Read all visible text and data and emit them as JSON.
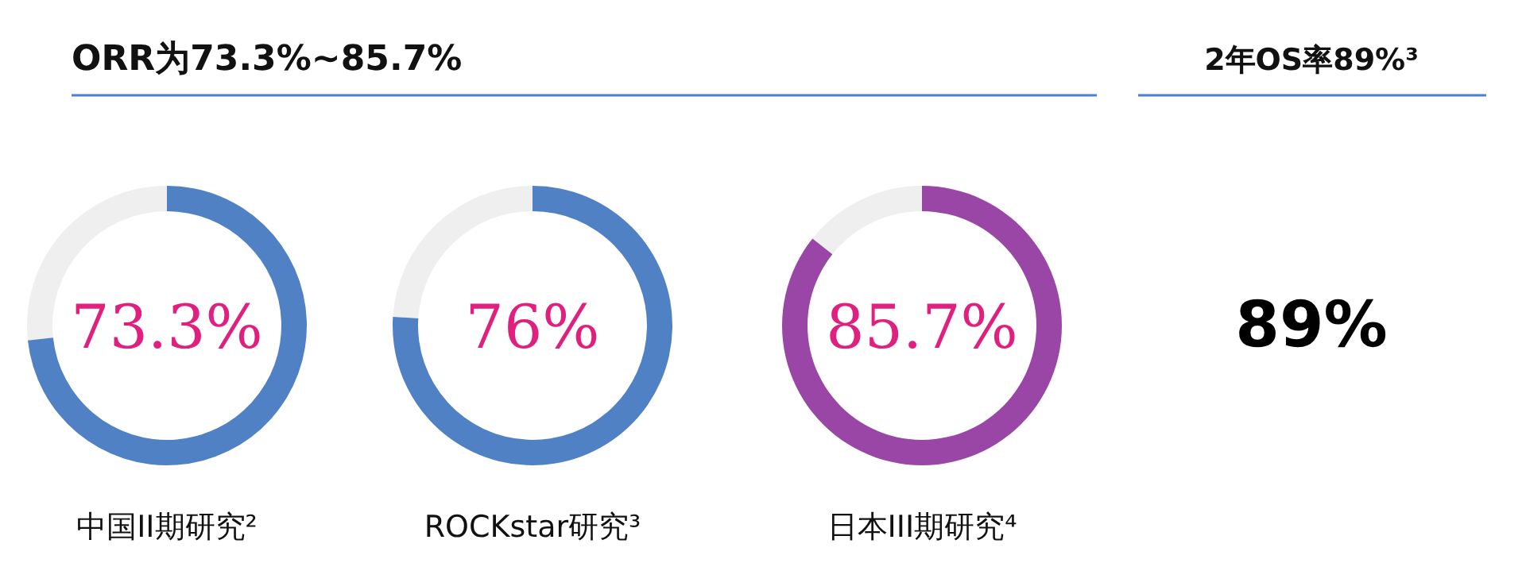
{
  "chart_data": [
    {
      "type": "donut",
      "title": "ORR为73.3%~85.7%",
      "xlabel": "中国II期研究²",
      "categories": [
        null,
        null
      ],
      "values": [
        73.3,
        26.7
      ],
      "colors": [
        "#4f81c4",
        "#efefef"
      ],
      "value_labels": [
        "73.3%",
        null
      ]
    },
    {
      "type": "donut",
      "xlabel": "ROCKstar研究³",
      "categories": [
        null,
        null
      ],
      "values": [
        76,
        24
      ],
      "colors": [
        "#4f81c4",
        "#efefef"
      ],
      "value_labels": [
        "76%",
        null
      ]
    },
    {
      "type": "donut",
      "xlabel": "日本III期研究⁴",
      "categories": [
        null,
        null
      ],
      "values": [
        85.7,
        14.3
      ],
      "colors": [
        "#9a46a6",
        "#efefef"
      ],
      "value_labels": [
        "85.7%",
        null
      ]
    },
    {
      "type": "other",
      "title": "2年OS率89%³",
      "annotations": [
        "89%"
      ]
    }
  ]
}
